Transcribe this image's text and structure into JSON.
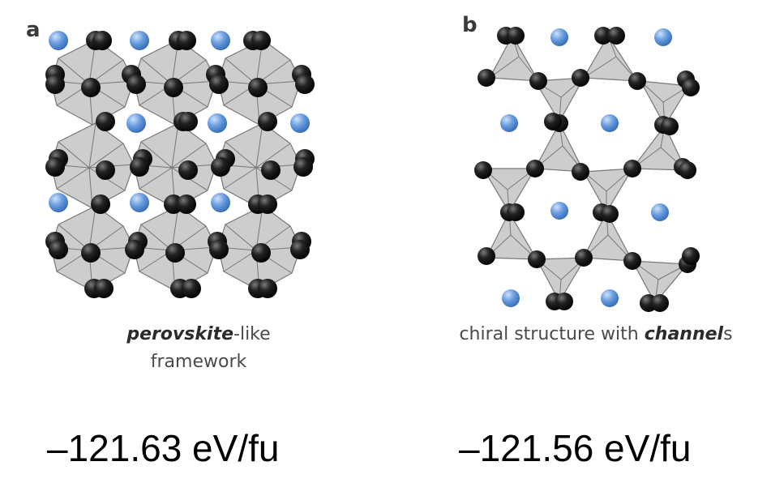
{
  "panels": [
    {
      "letter": "a",
      "caption_bold": "perovskite",
      "caption_rest_line1": "-like",
      "caption_line2": "framework",
      "energy": "–121.63 eV/fu"
    },
    {
      "letter": "b",
      "caption_prefix": "chiral structure with ",
      "caption_bold": "channel",
      "caption_suffix": "s",
      "energy": "–121.56 eV/fu"
    }
  ],
  "colors": {
    "polyhedron_fill": "#c4c4c4",
    "polyhedron_edge": "#777777",
    "anion": "#1a1a1a",
    "cation": "#5b8fd6"
  }
}
